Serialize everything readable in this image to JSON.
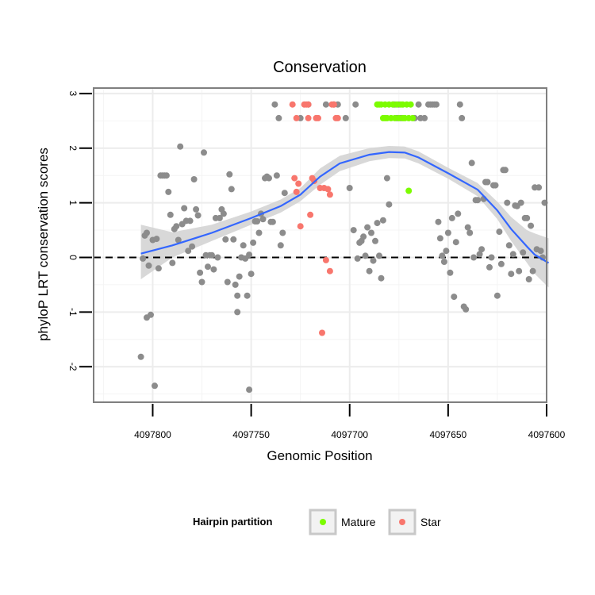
{
  "chart_data": {
    "type": "scatter",
    "title": "Conservation",
    "xlabel": "Genomic Position",
    "ylabel": "phyloP LRT conservation scores",
    "x_reversed": true,
    "xlim": [
      4097600,
      4097830
    ],
    "ylim": [
      -2.65,
      3.1
    ],
    "x_ticks": [
      4097800,
      4097750,
      4097700,
      4097650,
      4097600
    ],
    "x_tick_labels": [
      "4097800",
      "4097750",
      "4097700",
      "4097650",
      "4097600"
    ],
    "y_ticks": [
      -2,
      -1,
      0,
      1,
      2,
      3
    ],
    "y_tick_labels": [
      "-2",
      "-1",
      "0",
      "1",
      "2",
      "3"
    ],
    "reference_line": {
      "y": 0,
      "style": "dashed"
    },
    "legend": {
      "title": "Hairpin partition",
      "position": "bottom",
      "entries": [
        {
          "label": "Mature",
          "color": "#7CFC00"
        },
        {
          "label": "Star",
          "color": "#F8766D"
        }
      ]
    },
    "colors": {
      "Other": "#8C8C8C",
      "Mature": "#7CFC00",
      "Star": "#F8766D",
      "smooth": "#3366FF",
      "band": "#D4D4D4"
    },
    "smooth": {
      "x": [
        4097806,
        4097790,
        4097770,
        4097750,
        4097735,
        4097725,
        4097715,
        4097705,
        4097690,
        4097680,
        4097672,
        4097665,
        4097650,
        4097635,
        4097625,
        4097618,
        4097610,
        4097606,
        4097599
      ],
      "y": [
        0.07,
        0.22,
        0.45,
        0.72,
        0.94,
        1.15,
        1.48,
        1.72,
        1.88,
        1.93,
        1.92,
        1.83,
        1.54,
        1.24,
        0.86,
        0.52,
        0.2,
        0.05,
        -0.1
      ],
      "lower": [
        -0.4,
        0.0,
        0.3,
        0.6,
        0.82,
        1.03,
        1.33,
        1.58,
        1.76,
        1.82,
        1.81,
        1.72,
        1.44,
        1.12,
        0.7,
        0.3,
        -0.1,
        -0.3,
        -0.55
      ],
      "upper": [
        0.6,
        0.46,
        0.6,
        0.84,
        1.06,
        1.27,
        1.63,
        1.86,
        2.0,
        2.04,
        2.03,
        1.94,
        1.64,
        1.36,
        1.02,
        0.74,
        0.5,
        0.44,
        0.35
      ]
    },
    "series": [
      {
        "name": "Other",
        "points": [
          [
            4097806,
            -1.82
          ],
          [
            4097805,
            -0.02
          ],
          [
            4097804,
            0.4
          ],
          [
            4097803,
            0.45
          ],
          [
            4097803,
            -1.1
          ],
          [
            4097802,
            -0.15
          ],
          [
            4097801,
            -1.05
          ],
          [
            4097800,
            0.32
          ],
          [
            4097799,
            -2.35
          ],
          [
            4097798,
            0.34
          ],
          [
            4097797,
            -0.2
          ],
          [
            4097796,
            1.5
          ],
          [
            4097795,
            1.5
          ],
          [
            4097794,
            1.5
          ],
          [
            4097793,
            1.5
          ],
          [
            4097792,
            1.2
          ],
          [
            4097791,
            0.78
          ],
          [
            4097790,
            -0.1
          ],
          [
            4097789,
            0.52
          ],
          [
            4097788,
            0.57
          ],
          [
            4097787,
            0.32
          ],
          [
            4097786,
            2.03
          ],
          [
            4097785,
            0.61
          ],
          [
            4097784,
            0.9
          ],
          [
            4097783,
            0.67
          ],
          [
            4097782,
            0.12
          ],
          [
            4097781,
            0.67
          ],
          [
            4097780,
            0.2
          ],
          [
            4097779,
            1.43
          ],
          [
            4097778,
            0.88
          ],
          [
            4097777,
            0.77
          ],
          [
            4097776,
            -0.28
          ],
          [
            4097775,
            -0.45
          ],
          [
            4097774,
            1.92
          ],
          [
            4097773,
            0.04
          ],
          [
            4097772,
            -0.17
          ],
          [
            4097771,
            0.04
          ],
          [
            4097770,
            0.04
          ],
          [
            4097769,
            -0.22
          ],
          [
            4097768,
            0.72
          ],
          [
            4097767,
            0.0
          ],
          [
            4097766,
            0.72
          ],
          [
            4097765,
            0.88
          ],
          [
            4097764,
            0.8
          ],
          [
            4097763,
            0.33
          ],
          [
            4097762,
            -0.45
          ],
          [
            4097761,
            1.52
          ],
          [
            4097760,
            1.25
          ],
          [
            4097759,
            0.33
          ],
          [
            4097758,
            -0.5
          ],
          [
            4097757,
            -1.0
          ],
          [
            4097757,
            -0.7
          ],
          [
            4097756,
            -0.35
          ],
          [
            4097755,
            0.0
          ],
          [
            4097754,
            0.22
          ],
          [
            4097753,
            -0.02
          ],
          [
            4097752,
            -0.7
          ],
          [
            4097751,
            -2.42
          ],
          [
            4097751,
            0.05
          ],
          [
            4097750,
            -0.3
          ],
          [
            4097749,
            0.27
          ],
          [
            4097748,
            0.66
          ],
          [
            4097747,
            0.66
          ],
          [
            4097746,
            0.45
          ],
          [
            4097745,
            0.8
          ],
          [
            4097744,
            0.7
          ],
          [
            4097743,
            1.45
          ],
          [
            4097742,
            1.48
          ],
          [
            4097741,
            1.45
          ],
          [
            4097740,
            0.65
          ],
          [
            4097739,
            0.65
          ],
          [
            4097738,
            2.8
          ],
          [
            4097737,
            1.5
          ],
          [
            4097736,
            2.55
          ],
          [
            4097735,
            0.22
          ],
          [
            4097734,
            0.45
          ],
          [
            4097733,
            1.18
          ],
          [
            4097725,
            2.55
          ],
          [
            4097721,
            2.8
          ],
          [
            4097712,
            2.8
          ],
          [
            4097708,
            2.8
          ],
          [
            4097706,
            2.8
          ],
          [
            4097702,
            2.55
          ],
          [
            4097700,
            1.27
          ],
          [
            4097698,
            0.5
          ],
          [
            4097697,
            2.8
          ],
          [
            4097696,
            -0.02
          ],
          [
            4097695,
            0.27
          ],
          [
            4097694,
            0.3
          ],
          [
            4097693,
            0.38
          ],
          [
            4097692,
            0.03
          ],
          [
            4097691,
            0.55
          ],
          [
            4097690,
            -0.25
          ],
          [
            4097689,
            0.45
          ],
          [
            4097688,
            -0.06
          ],
          [
            4097687,
            0.3
          ],
          [
            4097686,
            0.63
          ],
          [
            4097685,
            0.03
          ],
          [
            4097684,
            -0.38
          ],
          [
            4097683,
            0.68
          ],
          [
            4097681,
            1.45
          ],
          [
            4097680,
            0.97
          ],
          [
            4097678,
            2.8
          ],
          [
            4097677,
            2.8
          ],
          [
            4097676,
            2.55
          ],
          [
            4097675,
            2.8
          ],
          [
            4097674,
            2.55
          ],
          [
            4097667,
            2.55
          ],
          [
            4097665,
            2.8
          ],
          [
            4097664,
            2.55
          ],
          [
            4097662,
            2.55
          ],
          [
            4097660,
            2.8
          ],
          [
            4097659,
            2.8
          ],
          [
            4097658,
            2.8
          ],
          [
            4097657,
            2.8
          ],
          [
            4097656,
            2.8
          ],
          [
            4097655,
            0.65
          ],
          [
            4097654,
            0.35
          ],
          [
            4097653,
            0.03
          ],
          [
            4097652,
            -0.08
          ],
          [
            4097651,
            0.12
          ],
          [
            4097650,
            0.45
          ],
          [
            4097649,
            -0.28
          ],
          [
            4097648,
            0.72
          ],
          [
            4097647,
            -0.72
          ],
          [
            4097646,
            0.28
          ],
          [
            4097645,
            0.8
          ],
          [
            4097644,
            2.8
          ],
          [
            4097643,
            2.55
          ],
          [
            4097642,
            -0.9
          ],
          [
            4097641,
            -0.95
          ],
          [
            4097640,
            0.55
          ],
          [
            4097639,
            0.45
          ],
          [
            4097638,
            1.73
          ],
          [
            4097637,
            0.0
          ],
          [
            4097636,
            1.05
          ],
          [
            4097635,
            1.05
          ],
          [
            4097634,
            0.06
          ],
          [
            4097633,
            0.15
          ],
          [
            4097632,
            1.07
          ],
          [
            4097631,
            1.38
          ],
          [
            4097630,
            1.38
          ],
          [
            4097629,
            -0.18
          ],
          [
            4097628,
            0.0
          ],
          [
            4097627,
            1.32
          ],
          [
            4097626,
            1.32
          ],
          [
            4097625,
            -0.7
          ],
          [
            4097624,
            0.47
          ],
          [
            4097623,
            -0.12
          ],
          [
            4097622,
            1.6
          ],
          [
            4097621,
            1.6
          ],
          [
            4097620,
            1.0
          ],
          [
            4097619,
            0.22
          ],
          [
            4097618,
            -0.3
          ],
          [
            4097617,
            0.06
          ],
          [
            4097616,
            0.95
          ],
          [
            4097615,
            0.94
          ],
          [
            4097614,
            -0.25
          ],
          [
            4097613,
            1.0
          ],
          [
            4097612,
            0.09
          ],
          [
            4097611,
            0.72
          ],
          [
            4097610,
            0.72
          ],
          [
            4097609,
            -0.4
          ],
          [
            4097608,
            0.58
          ],
          [
            4097607,
            -0.25
          ],
          [
            4097606,
            1.28
          ],
          [
            4097605,
            0.15
          ],
          [
            4097604,
            1.28
          ],
          [
            4097603,
            0.12
          ],
          [
            4097602,
            0.0
          ],
          [
            4097601,
            1.0
          ]
        ]
      },
      {
        "name": "Star",
        "points": [
          [
            4097729,
            2.8
          ],
          [
            4097728,
            1.45
          ],
          [
            4097727,
            2.55
          ],
          [
            4097727,
            1.2
          ],
          [
            4097726,
            1.35
          ],
          [
            4097725,
            0.57
          ],
          [
            4097723,
            2.8
          ],
          [
            4097722,
            2.8
          ],
          [
            4097721,
            2.8
          ],
          [
            4097721,
            2.55
          ],
          [
            4097720,
            0.78
          ],
          [
            4097719,
            1.45
          ],
          [
            4097718,
            1.4
          ],
          [
            4097717,
            2.55
          ],
          [
            4097716,
            2.55
          ],
          [
            4097715,
            1.27
          ],
          [
            4097714,
            -1.38
          ],
          [
            4097713,
            1.27
          ],
          [
            4097712,
            -0.05
          ],
          [
            4097711,
            1.25
          ],
          [
            4097710,
            -0.25
          ],
          [
            4097710,
            1.15
          ],
          [
            4097709,
            2.8
          ],
          [
            4097708,
            2.8
          ],
          [
            4097707,
            2.55
          ],
          [
            4097706,
            2.55
          ]
        ]
      },
      {
        "name": "Mature",
        "points": [
          [
            4097686,
            2.8
          ],
          [
            4097685,
            2.8
          ],
          [
            4097684,
            2.8
          ],
          [
            4097683,
            2.55
          ],
          [
            4097682,
            2.8
          ],
          [
            4097682,
            2.55
          ],
          [
            4097681,
            2.55
          ],
          [
            4097680,
            2.8
          ],
          [
            4097679,
            2.55
          ],
          [
            4097678,
            2.8
          ],
          [
            4097677,
            2.55
          ],
          [
            4097676,
            2.8
          ],
          [
            4097675,
            2.55
          ],
          [
            4097674,
            2.8
          ],
          [
            4097673,
            2.8
          ],
          [
            4097673,
            2.55
          ],
          [
            4097672,
            2.55
          ],
          [
            4097671,
            2.8
          ],
          [
            4097670,
            2.55
          ],
          [
            4097670,
            1.22
          ],
          [
            4097669,
            2.8
          ],
          [
            4097668,
            2.55
          ]
        ]
      }
    ]
  }
}
